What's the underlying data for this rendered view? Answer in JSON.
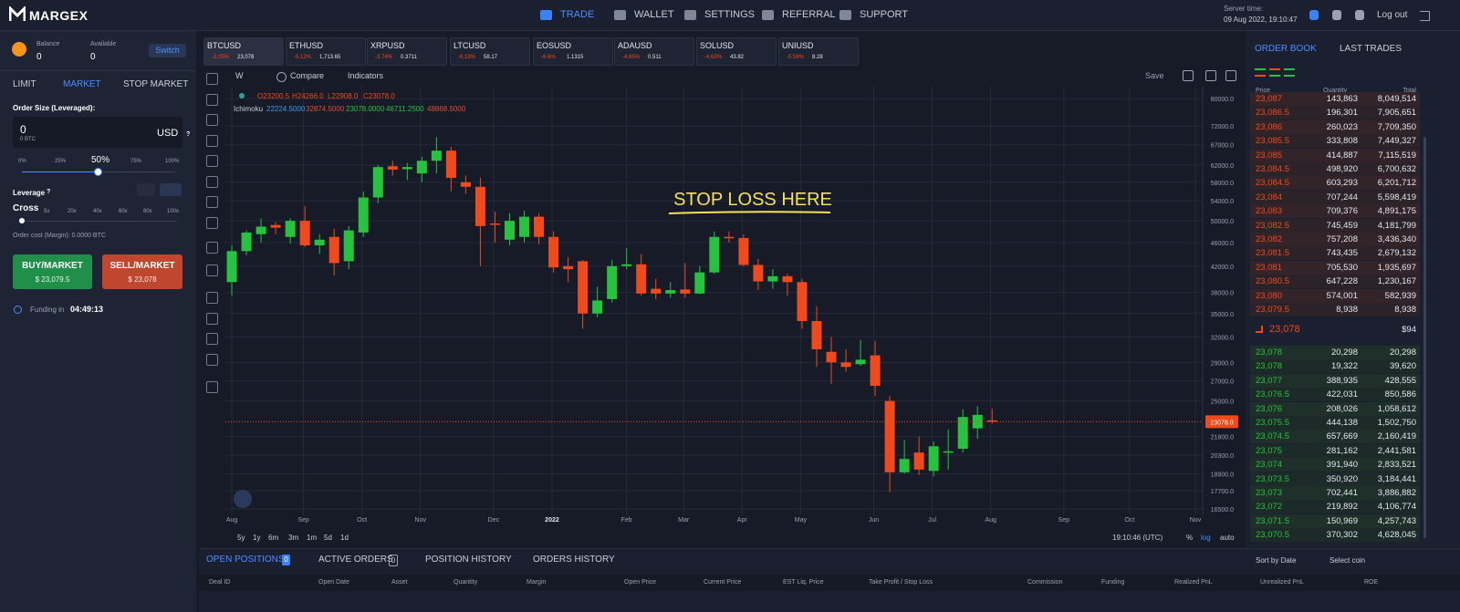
{
  "nav": {
    "brand": "MARGEX",
    "items": [
      "TRADE",
      "WALLET",
      "SETTINGS",
      "REFERRAL",
      "SUPPORT"
    ],
    "server_time_label": "Server time:",
    "server_time": "09 Aug 2022, 19:10:47",
    "logout": "Log out"
  },
  "account": {
    "balance_label": "Balance",
    "balance": "0",
    "available_label": "Available",
    "available": "0",
    "switch": "Switch"
  },
  "order_form": {
    "tabs": [
      "LIMIT",
      "MARKET",
      "STOP MARKET"
    ],
    "size_label": "Order Size (Leveraged):",
    "size": "0",
    "size_btc": "0 BTC",
    "currency": "USD",
    "help": "?",
    "slider_marks": [
      "0%",
      "25%",
      "50%",
      "75%",
      "100%"
    ],
    "leverage_label": "Leverage",
    "leverage_help": "?",
    "cross": "Cross",
    "leverage_marks": [
      "5x",
      "20x",
      "40x",
      "60x",
      "80x",
      "100x"
    ],
    "order_cost": "Order cost (Margin): 0.0000 BTC",
    "buy": "BUY/MARKET",
    "buy_price": "$ 23,079.5",
    "sell": "SELL/MARKET",
    "sell_price": "$ 23,078",
    "funding_label": "Funding in",
    "funding_time": "04:49:13"
  },
  "tickers": [
    {
      "symbol": "BTCUSD",
      "change": "-3.25%",
      "price": "23,078"
    },
    {
      "symbol": "ETHUSD",
      "change": "-5.12%",
      "price": "1,713.65"
    },
    {
      "symbol": "XRPUSD",
      "change": "-3.74%",
      "price": "0.3711"
    },
    {
      "symbol": "LTCUSD",
      "change": "-6.19%",
      "price": "58.17"
    },
    {
      "symbol": "EOSUSD",
      "change": "-6.6%",
      "price": "1.1315"
    },
    {
      "symbol": "ADAUSD",
      "change": "-4.65%",
      "price": "0.511"
    },
    {
      "symbol": "SOLUSD",
      "change": "-4.63%",
      "price": "43.82"
    },
    {
      "symbol": "UNIUSD",
      "change": "-5.59%",
      "price": "8.28"
    }
  ],
  "chart_toolbar": {
    "interval": "W",
    "compare": "Compare",
    "indicators": "Indicators",
    "save": "Save"
  },
  "legend": {
    "ohlc": [
      "O23200.5",
      "H24266.0",
      "L22908.0",
      "C23078.0"
    ],
    "ichimoku_label": "Ichimoku",
    "ichimoku": [
      "22224.5000",
      "32874.5000",
      "23078.0000",
      "46711.2500",
      "48868.5000"
    ]
  },
  "chart_data": {
    "type": "candlestick",
    "annotation": "STOP LOSS HERE",
    "up_color": "#27c23f",
    "down_color": "#f0491c",
    "log_scale": true,
    "grid": true,
    "open": [
      39500,
      44500,
      47500,
      49200,
      47000,
      50000,
      45500,
      47000,
      42800,
      47800,
      54700,
      61700,
      61000,
      60000,
      63000,
      65500,
      58000,
      57000,
      49500,
      46500,
      47000,
      50800,
      47000,
      42000,
      42800,
      35000,
      37000,
      42000,
      42300,
      38500,
      37800,
      38400,
      37800,
      41000,
      47000,
      46800,
      42200,
      39600,
      40400,
      39500,
      34000,
      30200,
      29000,
      28800,
      29800,
      25000,
      19000,
      20500,
      19100,
      20500,
      20800,
      22500,
      23200
    ],
    "high": [
      45500,
      48200,
      50500,
      49800,
      50500,
      52900,
      47500,
      48500,
      49000,
      56000,
      62000,
      63000,
      62500,
      64000,
      69000,
      66500,
      59500,
      59000,
      51800,
      51500,
      52000,
      51500,
      48000,
      43500,
      43000,
      38800,
      43000,
      45000,
      44000,
      40000,
      39500,
      42500,
      42000,
      48000,
      48000,
      47500,
      43200,
      41500,
      40800,
      40000,
      36000,
      32000,
      30500,
      31600,
      31500,
      25500,
      21500,
      21800,
      21400,
      22400,
      24200,
      24500,
      24266
    ],
    "low": [
      37500,
      43800,
      46000,
      47500,
      45800,
      45200,
      44000,
      40500,
      41500,
      47000,
      53500,
      59500,
      58500,
      58000,
      60000,
      56000,
      55500,
      42000,
      46000,
      45500,
      46000,
      45700,
      41000,
      39500,
      33000,
      34500,
      36500,
      41500,
      37500,
      37000,
      37200,
      37200,
      37700,
      40800,
      46000,
      42000,
      38300,
      38500,
      37500,
      33000,
      28500,
      26700,
      28000,
      28600,
      25500,
      17600,
      18900,
      18800,
      18700,
      19200,
      20500,
      21600,
      22908
    ],
    "close": [
      44500,
      47800,
      48900,
      48700,
      50000,
      45500,
      46500,
      42500,
      48200,
      54700,
      61500,
      60900,
      61500,
      63000,
      65500,
      59000,
      57000,
      49000,
      49300,
      50000,
      50800,
      47000,
      41800,
      41500,
      35000,
      36800,
      42000,
      42300,
      37800,
      37800,
      38300,
      37800,
      41000,
      47000,
      46800,
      42200,
      39600,
      40400,
      39500,
      34000,
      30500,
      29000,
      28500,
      29300,
      26500,
      19000,
      20000,
      19200,
      21000,
      20600,
      23500,
      23700,
      23078
    ],
    "ylim": [
      16100,
      83800
    ],
    "yticks": [
      {
        "value": 80000,
        "label": "80000.0"
      },
      {
        "value": 72000,
        "label": "72000.0"
      },
      {
        "value": 67000,
        "label": "67000.0"
      },
      {
        "value": 62000,
        "label": "62000.0"
      },
      {
        "value": 58000,
        "label": "58000.0"
      },
      {
        "value": 54000,
        "label": "54000.0"
      },
      {
        "value": 50000,
        "label": "50000.0"
      },
      {
        "value": 46000,
        "label": "46000.0"
      },
      {
        "value": 42000,
        "label": "42000.0"
      },
      {
        "value": 38000,
        "label": "38000.0"
      },
      {
        "value": 35000,
        "label": "35000.0"
      },
      {
        "value": 32000,
        "label": "32000.0"
      },
      {
        "value": 29000,
        "label": "29000.0"
      },
      {
        "value": 27000,
        "label": "27000.0"
      },
      {
        "value": 25000,
        "label": "25000.0"
      },
      {
        "value": 21800,
        "label": "21800.0"
      },
      {
        "value": 20300,
        "label": "20300.0"
      },
      {
        "value": 18900,
        "label": "18900.0"
      },
      {
        "value": 17700,
        "label": "17700.0"
      },
      {
        "value": 16500,
        "label": "16500.0"
      }
    ],
    "last_price": {
      "value": 23078,
      "label": "23078.0"
    },
    "xlim": [
      -0.44,
      66.4
    ],
    "xticks": [
      {
        "value": 0,
        "label": "Aug"
      },
      {
        "value": 4.9,
        "label": "Sep"
      },
      {
        "value": 8.9,
        "label": "Oct"
      },
      {
        "value": 12.9,
        "label": "Nov"
      },
      {
        "value": 17.9,
        "label": "Dec"
      },
      {
        "value": 21.9,
        "label": "2022"
      },
      {
        "value": 27,
        "label": "Feb"
      },
      {
        "value": 30.9,
        "label": "Mar"
      },
      {
        "value": 34.9,
        "label": "Apr"
      },
      {
        "value": 38.9,
        "label": "May"
      },
      {
        "value": 43.9,
        "label": "Jun"
      },
      {
        "value": 47.9,
        "label": "Jul"
      },
      {
        "value": 51.9,
        "label": "Aug"
      },
      {
        "value": 56.9,
        "label": "Sep"
      },
      {
        "value": 61.4,
        "label": "Oct"
      },
      {
        "value": 65.9,
        "label": "Nov"
      }
    ]
  },
  "chart_footer": {
    "ranges": [
      "5y",
      "1y",
      "6m",
      "3m",
      "1m",
      "5d",
      "1d"
    ],
    "time": "19:10:46 (UTC)",
    "options": [
      "%",
      "log",
      "auto"
    ]
  },
  "order_book": {
    "tabs": [
      "ORDER BOOK",
      "LAST TRADES"
    ],
    "columns": [
      "Price",
      "Quantity",
      "Total"
    ],
    "asks": [
      [
        "23,087",
        "143,863",
        "8,049,514"
      ],
      [
        "23,086.5",
        "196,301",
        "7,905,651"
      ],
      [
        "23,086",
        "260,023",
        "7,709,350"
      ],
      [
        "23,085.5",
        "333,808",
        "7,449,327"
      ],
      [
        "23,085",
        "414,887",
        "7,115,519"
      ],
      [
        "23,084.5",
        "498,920",
        "6,700,632"
      ],
      [
        "23,084.5",
        "603,293",
        "6,201,712"
      ],
      [
        "23,084",
        "707,244",
        "5,598,419"
      ],
      [
        "23,083",
        "709,376",
        "4,891,175"
      ],
      [
        "23,082.5",
        "745,459",
        "4,181,799"
      ],
      [
        "23,082",
        "757,208",
        "3,436,340"
      ],
      [
        "23,081.5",
        "743,435",
        "2,679,132"
      ],
      [
        "23,081",
        "705,530",
        "1,935,697"
      ],
      [
        "23,080.5",
        "647,228",
        "1,230,167"
      ],
      [
        "23,080",
        "574,001",
        "582,939"
      ],
      [
        "23,079.5",
        "8,938",
        "8,938"
      ]
    ],
    "last_price": "23,078",
    "last_usd": "$94",
    "bids": [
      [
        "23,078",
        "20,298",
        "20,298"
      ],
      [
        "23,078",
        "19,322",
        "39,620"
      ],
      [
        "23,077",
        "388,935",
        "428,555"
      ],
      [
        "23,076.5",
        "422,031",
        "850,586"
      ],
      [
        "23,076",
        "208,026",
        "1,058,612"
      ],
      [
        "23,075.5",
        "444,138",
        "1,502,750"
      ],
      [
        "23,074.5",
        "657,669",
        "2,160,419"
      ],
      [
        "23,075",
        "281,162",
        "2,441,581"
      ],
      [
        "23,074",
        "391,940",
        "2,833,521"
      ],
      [
        "23,073.5",
        "350,920",
        "3,184,441"
      ],
      [
        "23,073",
        "702,441",
        "3,886,882"
      ],
      [
        "23,072",
        "219,892",
        "4,106,774"
      ],
      [
        "23,071.5",
        "150,969",
        "4,257,743"
      ],
      [
        "23,070.5",
        "370,302",
        "4,628,045"
      ]
    ]
  },
  "positions": {
    "tabs": [
      "OPEN POSITIONS",
      "ACTIVE ORDERS",
      "POSITION HISTORY",
      "ORDERS HISTORY"
    ],
    "counts": [
      "0",
      "0"
    ],
    "sort": "Sort by Date",
    "select": "Select coin",
    "columns": [
      "Deal ID",
      "Open Date",
      "Asset",
      "Quantity",
      "Margin",
      "Open Price",
      "Current Price",
      "EST Liq. Price",
      "Take Profit / Stop Loss",
      "Commission",
      "Funding",
      "Realized PnL",
      "Unrealized PnL",
      "ROE"
    ]
  }
}
